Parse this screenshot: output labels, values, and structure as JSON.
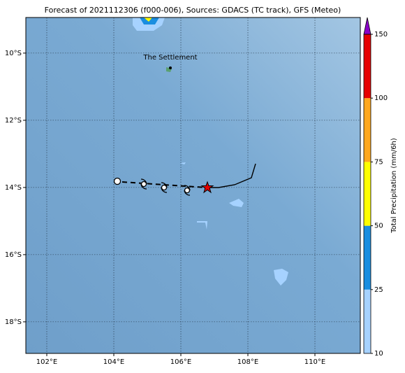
{
  "title": "Forecast of 2021112306 (f000-006), Sources: GDACS (TC track), GFS (Meteo)",
  "map": {
    "xlim": [
      101.375,
      111.354
    ],
    "ylim": [
      -18.94,
      -8.94
    ],
    "xticks": [
      {
        "value": 102,
        "label": "102°E"
      },
      {
        "value": 104,
        "label": "104°E"
      },
      {
        "value": 106,
        "label": "106°E"
      },
      {
        "value": 108,
        "label": "108°E"
      },
      {
        "value": 110,
        "label": "110°E"
      }
    ],
    "yticks": [
      {
        "value": -10,
        "label": "10°S"
      },
      {
        "value": -12,
        "label": "12°S"
      },
      {
        "value": -14,
        "label": "14°S"
      },
      {
        "value": -16,
        "label": "16°S"
      },
      {
        "value": -18,
        "label": "18°S"
      }
    ],
    "grid": true
  },
  "place": {
    "name": "The Settlement"
  },
  "colorbar": {
    "label": "Total Precipitation (mm/6h)",
    "ticks": [
      10,
      25,
      50,
      75,
      100,
      150
    ],
    "colors": [
      "#a6d2ff",
      "#1a8ee0",
      "#ffff00",
      "#ffa81e",
      "#e60000"
    ],
    "extend_color": "#8a00c8"
  }
}
